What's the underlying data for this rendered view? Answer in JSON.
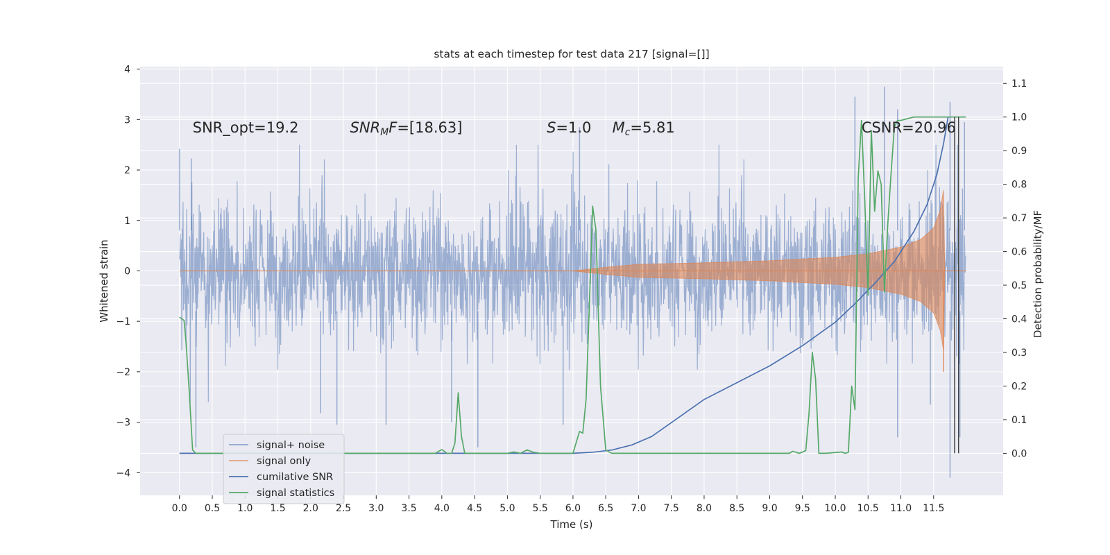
{
  "chart_data": {
    "type": "line",
    "title": "stats at each timestep for test data 217 [signal=[]]",
    "xlabel": "Time (s)",
    "ylabel_left": "Whitened strain",
    "ylabel_right": "Detection probability/MF",
    "xlim": [
      -0.6,
      12.56
    ],
    "ylim_left": [
      -4.45,
      4.05
    ],
    "ylim_right": [
      -0.125,
      1.15
    ],
    "x_ticks": [
      0.0,
      0.5,
      1.0,
      1.5,
      2.0,
      2.5,
      3.0,
      3.5,
      4.0,
      4.5,
      5.0,
      5.5,
      6.0,
      6.5,
      7.0,
      7.5,
      8.0,
      8.5,
      9.0,
      9.5,
      10.0,
      10.5,
      11.0,
      11.5
    ],
    "x_tick_labels": [
      "0.0",
      "0.5",
      "1.0",
      "1.5",
      "2.0",
      "2.5",
      "3.0",
      "3.5",
      "4.0",
      "4.5",
      "5.0",
      "5.5",
      "6.0",
      "6.5",
      "7.0",
      "7.5",
      "8.0",
      "8.5",
      "9.0",
      "9.5",
      "10.0",
      "10.5",
      "11.0",
      "11.5"
    ],
    "y_left_ticks": [
      -4,
      -3,
      -2,
      -1,
      0,
      1,
      2,
      3,
      4
    ],
    "y_left_tick_labels": [
      "−4",
      "−3",
      "−2",
      "−1",
      "0",
      "1",
      "2",
      "3",
      "4"
    ],
    "y_right_ticks": [
      0.0,
      0.1,
      0.2,
      0.3,
      0.4,
      0.5,
      0.6,
      0.7,
      0.8,
      0.9,
      1.0,
      1.1
    ],
    "y_right_tick_labels": [
      "0.0",
      "0.1",
      "0.2",
      "0.3",
      "0.4",
      "0.5",
      "0.6",
      "0.7",
      "0.8",
      "0.9",
      "1.0",
      "1.1"
    ],
    "grid": true,
    "legend_position": "lower-left",
    "annotations": [
      {
        "id": "snr-opt",
        "x": 0.2,
        "y": 2.85,
        "text": "SNR_opt=19.2",
        "italic_prefix": "",
        "sub": "",
        "suffix": ""
      },
      {
        "id": "snr-mf",
        "x": 2.6,
        "y": 2.85,
        "text": "",
        "italic_prefix": "SNR",
        "sub": "M",
        "suffix": "F=[18.63]",
        "italic_suffix_char": "F"
      },
      {
        "id": "s-value",
        "x": 5.6,
        "y": 2.85,
        "text": "",
        "italic_prefix": "S",
        "sub": "",
        "suffix": "=1.0"
      },
      {
        "id": "mc-value",
        "x": 6.6,
        "y": 2.85,
        "text": "",
        "italic_prefix": "M",
        "sub": "c",
        "suffix": "=5.81"
      },
      {
        "id": "csnr",
        "x": 10.4,
        "y": 2.85,
        "text": "CSNR=20.96",
        "italic_prefix": "",
        "sub": "",
        "suffix": ""
      }
    ],
    "vlines": [
      {
        "x": 11.82,
        "y_range_right": [
          0.0,
          1.0
        ]
      },
      {
        "x": 11.88,
        "y_range_right": [
          0.0,
          1.0
        ]
      }
    ],
    "series": [
      {
        "name": "signal+ noise",
        "axis": "left",
        "color": "#4c72b0",
        "alpha": 0.5,
        "kind": "noise",
        "x_range": [
          0.0,
          11.99
        ],
        "std": 0.85,
        "spikes": [
          [
            0.0,
            2.42
          ],
          [
            0.18,
            2.23
          ],
          [
            0.25,
            -3.5
          ],
          [
            2.15,
            -2.82
          ],
          [
            2.4,
            -3.05
          ],
          [
            3.15,
            -3.05
          ],
          [
            4.15,
            -3.0
          ],
          [
            4.55,
            -3.5
          ],
          [
            5.85,
            -3.05
          ],
          [
            6.1,
            2.85
          ],
          [
            10.3,
            3.45
          ],
          [
            10.75,
            3.65
          ],
          [
            10.95,
            3.2
          ],
          [
            10.95,
            -3.3
          ],
          [
            11.45,
            -2.65
          ],
          [
            11.75,
            3.35
          ],
          [
            11.75,
            -4.1
          ],
          [
            11.9,
            -3.3
          ],
          [
            11.97,
            2.95
          ]
        ]
      },
      {
        "name": "signal only",
        "axis": "left",
        "color": "#dd8452",
        "alpha": 0.6,
        "kind": "chirp-envelope",
        "envelope": [
          [
            6.0,
            0.0
          ],
          [
            6.5,
            0.07
          ],
          [
            7.0,
            0.13
          ],
          [
            8.0,
            0.16
          ],
          [
            9.0,
            0.2
          ],
          [
            10.0,
            0.27
          ],
          [
            10.5,
            0.34
          ],
          [
            11.0,
            0.47
          ],
          [
            11.3,
            0.62
          ],
          [
            11.5,
            0.85
          ],
          [
            11.6,
            1.2
          ],
          [
            11.65,
            1.6
          ],
          [
            11.67,
            0.0
          ]
        ],
        "x_end": 11.99
      },
      {
        "name": "cumilative SNR",
        "axis": "right",
        "color": "#4c72b0",
        "alpha": 1.0,
        "x": [
          0.0,
          6.0,
          6.3,
          6.6,
          6.9,
          7.2,
          7.6,
          8.0,
          8.5,
          9.0,
          9.5,
          10.0,
          10.3,
          10.6,
          10.9,
          11.2,
          11.4,
          11.55,
          11.65,
          11.72
        ],
        "y": [
          0.0,
          0.0,
          0.003,
          0.01,
          0.025,
          0.05,
          0.105,
          0.16,
          0.21,
          0.26,
          0.32,
          0.39,
          0.445,
          0.505,
          0.57,
          0.66,
          0.74,
          0.83,
          0.92,
          1.0
        ]
      },
      {
        "name": "signal statistics",
        "axis": "right",
        "color": "#55a868",
        "alpha": 1.0,
        "x": [
          0.0,
          0.07,
          0.1,
          0.15,
          0.2,
          0.25,
          3.9,
          4.0,
          4.08,
          4.15,
          4.2,
          4.25,
          4.3,
          4.35,
          4.4,
          5.0,
          5.1,
          5.2,
          5.3,
          5.4,
          5.5,
          6.0,
          6.1,
          6.15,
          6.2,
          6.25,
          6.3,
          6.35,
          6.42,
          6.5,
          6.58,
          6.6,
          6.7,
          6.8,
          9.3,
          9.35,
          9.45,
          9.55,
          9.6,
          9.65,
          9.7,
          9.75,
          9.8,
          9.85,
          10.1,
          10.15,
          10.2,
          10.25,
          10.3,
          10.35,
          10.4,
          10.45,
          10.5,
          10.55,
          10.6,
          10.65,
          10.7,
          10.75,
          10.8,
          10.85,
          10.9,
          10.95,
          11.0,
          11.1,
          11.2,
          11.3,
          11.4,
          11.5,
          11.6,
          11.7,
          11.99
        ],
        "y": [
          0.405,
          0.395,
          0.33,
          0.18,
          0.01,
          0.0,
          0.0,
          0.011,
          0.0,
          0.0,
          0.03,
          0.18,
          0.05,
          0.0,
          0.0,
          0.0,
          0.004,
          0.0,
          0.01,
          0.003,
          0.0,
          0.0,
          0.065,
          0.06,
          0.16,
          0.44,
          0.735,
          0.665,
          0.2,
          0.01,
          0.001,
          0.0,
          0.0,
          0.0,
          0.0,
          0.006,
          0.0,
          0.008,
          0.12,
          0.3,
          0.22,
          0.0,
          0.0,
          0.0,
          0.004,
          0.0,
          0.003,
          0.2,
          0.13,
          0.82,
          0.99,
          0.75,
          0.47,
          0.96,
          0.72,
          0.84,
          0.8,
          0.48,
          0.68,
          0.83,
          0.97,
          0.99,
          0.99,
          0.995,
          1.0,
          1.0,
          1.0,
          1.0,
          1.0,
          1.0,
          1.0
        ]
      }
    ]
  }
}
